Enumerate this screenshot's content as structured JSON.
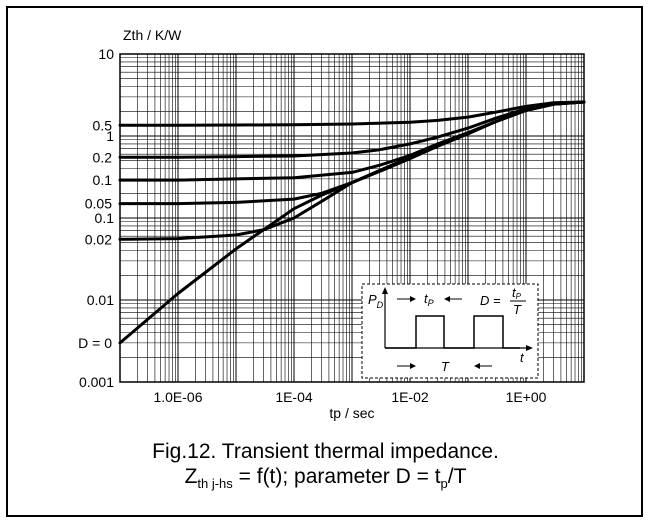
{
  "chart_data": {
    "type": "line",
    "title": "",
    "xlabel": "tp / sec",
    "ylabel": "Zth / K/W",
    "x_scale": "log",
    "y_scale": "log",
    "xlim": [
      1e-07,
      10
    ],
    "ylim": [
      0.001,
      10
    ],
    "grid": true,
    "x_ticks": [
      {
        "value": 1e-06,
        "label": "1.0E-06"
      },
      {
        "value": 0.0001,
        "label": "1E-04"
      },
      {
        "value": 0.01,
        "label": "1E-02"
      },
      {
        "value": 1,
        "label": "1E+00"
      }
    ],
    "y_ticks": [
      {
        "value": 10,
        "label": "10"
      },
      {
        "value": 1,
        "label": "1"
      },
      {
        "value": 0.1,
        "label": "0.1"
      },
      {
        "value": 0.01,
        "label": "0.01"
      },
      {
        "value": 0.001,
        "label": "0.001"
      }
    ],
    "series": [
      {
        "name": "0.5",
        "x": [
          1e-07,
          1e-06,
          1e-05,
          0.0001,
          0.001,
          0.01,
          0.03,
          0.1,
          0.3,
          1,
          3,
          10
        ],
        "y": [
          1.35,
          1.35,
          1.36,
          1.37,
          1.4,
          1.47,
          1.55,
          1.7,
          1.95,
          2.3,
          2.55,
          2.6
        ]
      },
      {
        "name": "0.2",
        "x": [
          1e-07,
          1e-06,
          1e-05,
          0.0001,
          0.001,
          0.003,
          0.01,
          0.03,
          0.1,
          0.3,
          1,
          3,
          10
        ],
        "y": [
          0.55,
          0.55,
          0.56,
          0.57,
          0.62,
          0.68,
          0.8,
          0.97,
          1.25,
          1.65,
          2.15,
          2.5,
          2.6
        ]
      },
      {
        "name": "0.1",
        "x": [
          1e-07,
          1e-06,
          1e-05,
          0.0001,
          0.001,
          0.003,
          0.01,
          0.03,
          0.1,
          0.3,
          1,
          3,
          10
        ],
        "y": [
          0.29,
          0.29,
          0.3,
          0.31,
          0.36,
          0.44,
          0.58,
          0.8,
          1.1,
          1.5,
          2.05,
          2.45,
          2.6
        ]
      },
      {
        "name": "0.05",
        "x": [
          1e-07,
          1e-06,
          1e-05,
          0.0001,
          0.0003,
          0.001,
          0.003,
          0.01,
          0.03,
          0.1,
          0.3,
          1,
          3,
          10
        ],
        "y": [
          0.15,
          0.15,
          0.155,
          0.17,
          0.2,
          0.27,
          0.38,
          0.55,
          0.77,
          1.08,
          1.5,
          2.05,
          2.45,
          2.6
        ]
      },
      {
        "name": "0.02",
        "x": [
          1e-07,
          1e-06,
          1e-05,
          3e-05,
          0.0001,
          0.0003,
          0.001,
          0.003,
          0.01,
          0.03,
          0.1,
          0.3,
          1,
          3,
          10
        ],
        "y": [
          0.055,
          0.056,
          0.062,
          0.072,
          0.1,
          0.16,
          0.27,
          0.38,
          0.54,
          0.76,
          1.07,
          1.5,
          2.05,
          2.45,
          2.6
        ]
      },
      {
        "name": "D = 0",
        "x": [
          1e-07,
          1e-06,
          1e-05,
          0.0001,
          0.0003,
          0.001,
          0.003,
          0.01,
          0.03,
          0.1,
          0.3,
          1,
          3,
          10
        ],
        "y": [
          0.003,
          0.012,
          0.042,
          0.13,
          0.19,
          0.27,
          0.37,
          0.53,
          0.75,
          1.06,
          1.5,
          2.05,
          2.45,
          2.6
        ]
      }
    ],
    "inset_labels": {
      "p": "P",
      "p_sub": "D",
      "tp": "t",
      "tp_sub": "P",
      "D_eq": "D =",
      "frac_num": "t",
      "frac_num_sub": "P",
      "frac_den": "T",
      "t": "t",
      "T": "T"
    }
  },
  "caption": {
    "line1": "Fig.12.  Transient thermal impedance.",
    "line2_prefix": "Z",
    "line2_sub": "th j-hs",
    "line2_mid": " = f(t); parameter D = t",
    "line2_sub2": "p",
    "line2_suffix": "/T"
  }
}
